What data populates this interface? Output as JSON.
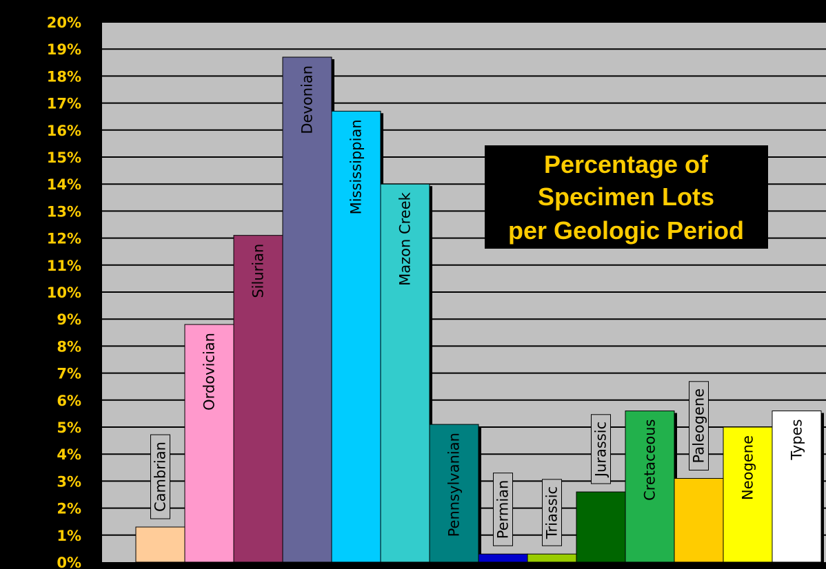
{
  "chart_data": {
    "type": "bar",
    "title": "Percentage of Specimen Lots per Geologic Period",
    "title_lines": [
      "Percentage of",
      "Specimen Lots",
      "per Geologic Period"
    ],
    "xlabel": "",
    "ylabel": "",
    "ylim": [
      0,
      20
    ],
    "y_tick_labels": [
      "0%",
      "1%",
      "2%",
      "3%",
      "4%",
      "5%",
      "6%",
      "7%",
      "8%",
      "9%",
      "10%",
      "11%",
      "12%",
      "13%",
      "14%",
      "15%",
      "16%",
      "17%",
      "18%",
      "19%",
      "20%"
    ],
    "grid": true,
    "legend": "none",
    "categories": [
      "Cambrian",
      "Ordovician",
      "Silurian",
      "Devonian",
      "Mississippian",
      "Mazon Creek",
      "Pennsylvanian",
      "Permian",
      "Triassic",
      "Jurassic",
      "Cretaceous",
      "Paleogene",
      "Neogene",
      "Types"
    ],
    "values": [
      1.3,
      8.8,
      12.1,
      18.7,
      16.7,
      14.0,
      5.1,
      0.3,
      0.3,
      2.6,
      5.6,
      3.1,
      5.0,
      5.6
    ],
    "colors": [
      "#ffcc99",
      "#ff99cc",
      "#993366",
      "#666699",
      "#00ccff",
      "#33cccc",
      "#008080",
      "#0000cc",
      "#99cc00",
      "#006600",
      "#22b14c",
      "#ffcc00",
      "#ffff00",
      "#ffffff"
    ],
    "style": {
      "background": "#000000",
      "plot_background": "#c0c0c0",
      "tick_label_color": "#ffcc00",
      "title_color": "#ffcc00",
      "title_box_color": "#000000"
    }
  }
}
